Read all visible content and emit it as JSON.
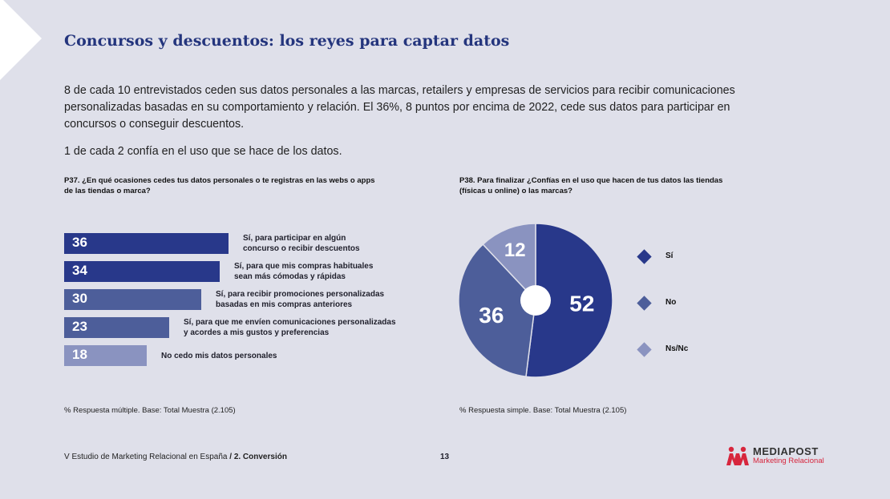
{
  "title": "Concursos y descuentos: los reyes para captar datos",
  "intro_p1": "8 de cada 10 entrevistados ceden sus datos personales a las marcas, retailers y empresas de servicios para recibir comunicaciones personalizadas basadas en su comportamiento y relación. El 36%, 8 puntos por encima de 2022, cede sus datos para participar en concursos o conseguir descuentos.",
  "intro_p2": "1 de cada 2 confía en el uso que se hace de los datos.",
  "colors": {
    "dark": "#28388a",
    "mid": "#4d5e9a",
    "light": "#8a93c0",
    "title": "#24357d",
    "brand_red": "#d7263d"
  },
  "chart_data": [
    {
      "type": "bar",
      "title": "P37. ¿En qué ocasiones cedes tus datos personales o te registras en las webs o apps de las tiendas o marca?",
      "categories": [
        "Sí, para participar en algún concurso o recibir descuentos",
        "Sí, para que mis compras habituales sean más cómodas y rápidas",
        "Sí, para recibir promociones personalizadas basadas en mis compras anteriores",
        "Sí, para que me envíen comunicaciones personalizadas y acordes a mis gustos y preferencias",
        "No cedo mis datos personales"
      ],
      "label_lines": [
        [
          "Sí, para participar en algún",
          "concurso o recibir descuentos"
        ],
        [
          "Sí, para que mis compras habituales",
          "sean más cómodas y rápidas"
        ],
        [
          "Sí, para recibir promociones personalizadas",
          "basadas en mis compras anteriores"
        ],
        [
          "Sí, para que me envíen comunicaciones personalizadas",
          "y acordes a mis gustos y preferencias"
        ],
        [
          "No cedo mis datos personales"
        ]
      ],
      "values": [
        36,
        34,
        30,
        23,
        18
      ],
      "note": "% Respuesta múltiple. Base: Total Muestra (2.105)"
    },
    {
      "type": "pie",
      "title": "P38. Para finalizar ¿Confías en el uso que hacen de tus datos las tiendas (físicas u online) o las marcas?",
      "categories": [
        "Sí",
        "No",
        "Ns/Nc"
      ],
      "values": [
        52,
        36,
        12
      ],
      "note": "% Respuesta simple. Base: Total Muestra (2.105)"
    }
  ],
  "footer": {
    "study": "V Estudio de Marketing Relacional en España",
    "sep": " / ",
    "section": "2. Conversión",
    "page": "13"
  },
  "logo": {
    "brand": "MEDIAPOST",
    "sub": "Marketing Relacional"
  }
}
